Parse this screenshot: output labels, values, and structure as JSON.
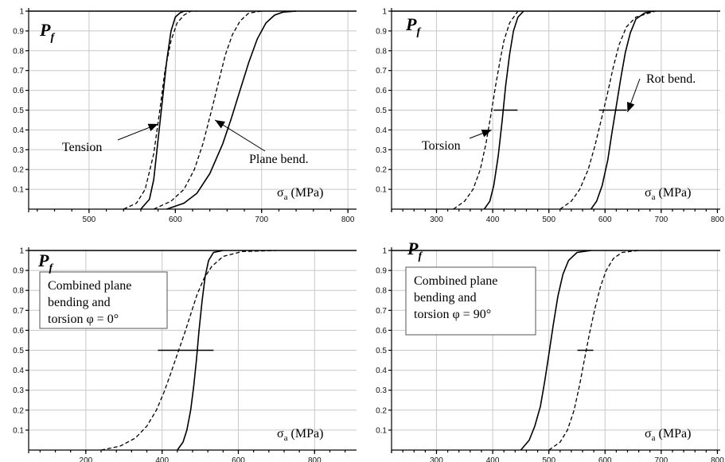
{
  "chart_data": [
    {
      "type": "line",
      "ylabel": "P",
      "ylabel_sub": "f",
      "xlabel": "σ",
      "xlabel_sub": "a",
      "xlabel_unit": "(MPa)",
      "xlim": [
        430,
        810
      ],
      "ylim": [
        0,
        1
      ],
      "xticks": [
        500,
        600,
        700,
        800
      ],
      "yticks": [
        0.1,
        0.2,
        0.3,
        0.4,
        0.5,
        0.6,
        0.7,
        0.8,
        0.9,
        1
      ],
      "grid": true,
      "series": [
        {
          "style": "solid",
          "x": [
            560,
            570,
            575,
            580,
            585,
            590,
            595,
            600,
            605,
            610,
            615
          ],
          "y": [
            0.0,
            0.05,
            0.15,
            0.35,
            0.55,
            0.75,
            0.9,
            0.97,
            0.99,
            1.0,
            1.0
          ]
        },
        {
          "style": "dashed",
          "x": [
            540,
            555,
            565,
            575,
            582,
            588,
            595,
            602,
            610,
            618,
            625
          ],
          "y": [
            0.0,
            0.03,
            0.1,
            0.28,
            0.5,
            0.7,
            0.85,
            0.94,
            0.98,
            1.0,
            1.0
          ]
        },
        {
          "style": "solid",
          "x": [
            590,
            610,
            625,
            640,
            655,
            665,
            675,
            685,
            695,
            705,
            715,
            725,
            740
          ],
          "y": [
            0.0,
            0.03,
            0.08,
            0.18,
            0.33,
            0.46,
            0.6,
            0.74,
            0.86,
            0.94,
            0.98,
            0.995,
            1.0
          ]
        },
        {
          "style": "dashed",
          "x": [
            575,
            595,
            610,
            622,
            632,
            642,
            650,
            658,
            666,
            675,
            685,
            700
          ],
          "y": [
            0.0,
            0.04,
            0.1,
            0.2,
            0.33,
            0.5,
            0.64,
            0.78,
            0.88,
            0.95,
            0.99,
            1.0
          ]
        }
      ],
      "annotations": [
        {
          "text": "Tension",
          "x": 480,
          "y": 0.27,
          "arrow_to": [
            580,
            0.43
          ]
        },
        {
          "text": "Plane bend.",
          "x": 680,
          "y": 0.2,
          "arrow_to": [
            646,
            0.45
          ]
        }
      ]
    },
    {
      "type": "line",
      "ylabel": "P",
      "ylabel_sub": "f",
      "xlabel": "σ",
      "xlabel_sub": "a",
      "xlabel_unit": "(MPa)",
      "xlim": [
        220,
        805
      ],
      "ylim": [
        0,
        1
      ],
      "xticks": [
        300,
        400,
        500,
        600,
        700,
        800
      ],
      "yticks": [
        0.1,
        0.2,
        0.3,
        0.4,
        0.5,
        0.6,
        0.7,
        0.8,
        0.9,
        1
      ],
      "grid": true,
      "series": [
        {
          "style": "solid",
          "x": [
            385,
            395,
            402,
            410,
            417,
            423,
            430,
            437,
            445,
            455
          ],
          "y": [
            0.0,
            0.04,
            0.12,
            0.27,
            0.45,
            0.62,
            0.78,
            0.9,
            0.97,
            1.0
          ]
        },
        {
          "style": "dashed",
          "x": [
            330,
            350,
            365,
            378,
            388,
            397,
            405,
            413,
            420,
            430,
            445
          ],
          "y": [
            0.0,
            0.04,
            0.1,
            0.2,
            0.33,
            0.48,
            0.62,
            0.75,
            0.85,
            0.94,
            1.0
          ]
        },
        {
          "style": "solid",
          "x": [
            575,
            585,
            595,
            605,
            612,
            620,
            628,
            636,
            645,
            655,
            670,
            685
          ],
          "y": [
            0.0,
            0.04,
            0.12,
            0.25,
            0.38,
            0.52,
            0.66,
            0.79,
            0.89,
            0.96,
            0.99,
            1.0
          ]
        },
        {
          "style": "dashed",
          "x": [
            520,
            540,
            555,
            570,
            582,
            594,
            604,
            614,
            625,
            638,
            655,
            690
          ],
          "y": [
            0.0,
            0.04,
            0.1,
            0.2,
            0.32,
            0.46,
            0.58,
            0.71,
            0.83,
            0.92,
            0.97,
            1.0
          ]
        }
      ],
      "annotations": [
        {
          "text": "Torsion",
          "x": 310,
          "y": 0.25,
          "arrow_to": [
            398,
            0.4
          ]
        },
        {
          "text": "Rot bend.",
          "x": 690,
          "y": 0.55,
          "arrow_to": [
            640,
            0.49
          ]
        }
      ]
    },
    {
      "type": "line",
      "ylabel": "P",
      "ylabel_sub": "f",
      "xlabel": "σ",
      "xlabel_sub": "a",
      "xlabel_unit": "(MPa)",
      "xlim": [
        50,
        910
      ],
      "ylim": [
        0,
        1
      ],
      "xticks": [
        200,
        400,
        600,
        800
      ],
      "yticks": [
        0.1,
        0.2,
        0.3,
        0.4,
        0.5,
        0.6,
        0.7,
        0.8,
        0.9,
        1
      ],
      "grid": true,
      "series": [
        {
          "style": "solid",
          "x": [
            440,
            455,
            465,
            475,
            483,
            490,
            497,
            505,
            513,
            522,
            535,
            560
          ],
          "y": [
            0.0,
            0.04,
            0.1,
            0.2,
            0.32,
            0.45,
            0.6,
            0.75,
            0.87,
            0.95,
            0.99,
            1.0
          ]
        },
        {
          "style": "dashed",
          "x": [
            240,
            290,
            330,
            360,
            385,
            405,
            422,
            440,
            458,
            475,
            492,
            510,
            530,
            560,
            610,
            700
          ],
          "y": [
            0.0,
            0.02,
            0.06,
            0.12,
            0.2,
            0.29,
            0.38,
            0.48,
            0.58,
            0.68,
            0.78,
            0.86,
            0.92,
            0.97,
            0.995,
            1.0
          ]
        }
      ],
      "annotations": [
        {
          "text": "Combined plane\nbending and\ntorsion φ = 0°"
        }
      ]
    },
    {
      "type": "line",
      "ylabel": "P",
      "ylabel_sub": "f",
      "xlabel": "σ",
      "xlabel_sub": "a",
      "xlabel_unit": "(MPa)",
      "xlim": [
        220,
        805
      ],
      "ylim": [
        0,
        1
      ],
      "xticks": [
        300,
        400,
        500,
        600,
        700,
        800
      ],
      "yticks": [
        0.1,
        0.2,
        0.3,
        0.4,
        0.5,
        0.6,
        0.7,
        0.8,
        0.9,
        1
      ],
      "grid": true,
      "series": [
        {
          "style": "solid",
          "x": [
            450,
            465,
            475,
            485,
            493,
            500,
            508,
            516,
            525,
            535,
            550,
            575
          ],
          "y": [
            0.0,
            0.05,
            0.12,
            0.22,
            0.35,
            0.48,
            0.63,
            0.77,
            0.88,
            0.95,
            0.99,
            1.0
          ]
        },
        {
          "style": "dashed",
          "x": [
            500,
            520,
            533,
            545,
            555,
            563,
            572,
            582,
            592,
            602,
            615,
            630,
            660
          ],
          "y": [
            0.0,
            0.04,
            0.1,
            0.2,
            0.33,
            0.45,
            0.58,
            0.71,
            0.82,
            0.9,
            0.96,
            0.99,
            1.0
          ]
        }
      ],
      "annotations": [
        {
          "text": "Combined plane\nbending and\ntorsion φ = 90°"
        }
      ]
    }
  ]
}
